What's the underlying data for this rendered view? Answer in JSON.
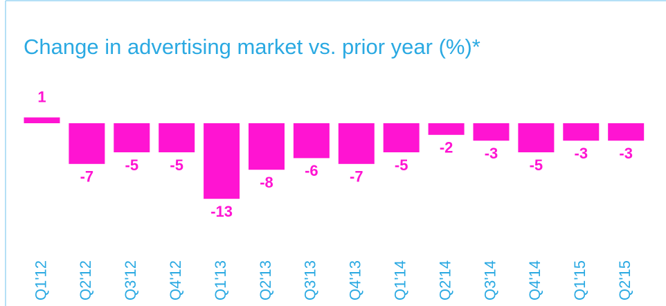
{
  "chart_data": {
    "type": "bar",
    "title": "Change in advertising market vs. prior year (%)*",
    "categories": [
      "Q1'12",
      "Q2'12",
      "Q3'12",
      "Q4'12",
      "Q1'13",
      "Q2'13",
      "Q3'13",
      "Q4'13",
      "Q1'14",
      "Q2'14",
      "Q3'14",
      "Q4'14",
      "Q1'15",
      "Q2'15"
    ],
    "values": [
      1,
      -7,
      -5,
      -5,
      -13,
      -8,
      -6,
      -7,
      -5,
      -2,
      -3,
      -5,
      -3,
      -3
    ],
    "color": "#ff14d2"
  }
}
